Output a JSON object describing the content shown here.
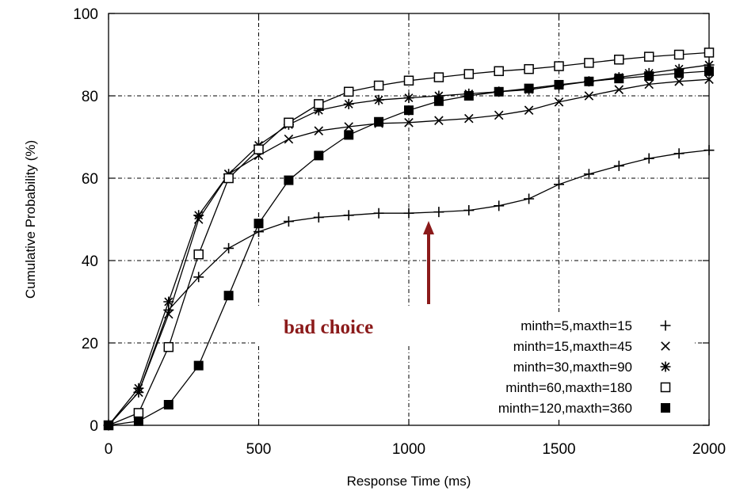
{
  "chart_data": {
    "type": "line",
    "title": "",
    "xlabel": "Response Time (ms)",
    "ylabel": "Cumulative Probability (%)",
    "xlim": [
      0,
      2000
    ],
    "ylim": [
      0,
      100
    ],
    "x_ticks": [
      "0",
      "500",
      "1000",
      "1500",
      "2000"
    ],
    "y_ticks": [
      "0",
      "20",
      "40",
      "60",
      "80",
      "100"
    ],
    "grid": true,
    "legend_position": "bottom-right",
    "series": [
      {
        "name": "minth=5,maxth=15",
        "marker": "plus",
        "points": [
          [
            0,
            0
          ],
          [
            100,
            8
          ],
          [
            200,
            28
          ],
          [
            300,
            36
          ],
          [
            400,
            43
          ],
          [
            500,
            47
          ],
          [
            600,
            49.5
          ],
          [
            700,
            50.5
          ],
          [
            800,
            51
          ],
          [
            900,
            51.5
          ],
          [
            1000,
            51.5
          ],
          [
            1100,
            51.8
          ],
          [
            1200,
            52.2
          ],
          [
            1300,
            53.3
          ],
          [
            1400,
            55
          ],
          [
            1500,
            58.5
          ],
          [
            1600,
            61
          ],
          [
            1700,
            63
          ],
          [
            1800,
            64.8
          ],
          [
            1900,
            66
          ],
          [
            2000,
            66.8
          ]
        ]
      },
      {
        "name": "minth=15,maxth=45",
        "marker": "cross",
        "points": [
          [
            0,
            0
          ],
          [
            100,
            8
          ],
          [
            200,
            27
          ],
          [
            300,
            50
          ],
          [
            400,
            61
          ],
          [
            500,
            65.5
          ],
          [
            600,
            69.5
          ],
          [
            700,
            71.5
          ],
          [
            800,
            72.5
          ],
          [
            900,
            73.3
          ],
          [
            1000,
            73.5
          ],
          [
            1100,
            74
          ],
          [
            1200,
            74.5
          ],
          [
            1300,
            75.3
          ],
          [
            1400,
            76.5
          ],
          [
            1500,
            78.5
          ],
          [
            1600,
            80
          ],
          [
            1700,
            81.5
          ],
          [
            1800,
            82.8
          ],
          [
            1900,
            83.5
          ],
          [
            2000,
            84
          ]
        ]
      },
      {
        "name": "minth=30,maxth=90",
        "marker": "star",
        "points": [
          [
            0,
            0
          ],
          [
            100,
            9
          ],
          [
            200,
            30
          ],
          [
            300,
            51
          ],
          [
            400,
            61
          ],
          [
            500,
            68
          ],
          [
            600,
            73
          ],
          [
            700,
            76.5
          ],
          [
            800,
            78
          ],
          [
            900,
            79
          ],
          [
            1000,
            79.5
          ],
          [
            1100,
            80
          ],
          [
            1200,
            80.5
          ],
          [
            1300,
            81
          ],
          [
            1400,
            81.5
          ],
          [
            1500,
            82.5
          ],
          [
            1600,
            83.5
          ],
          [
            1700,
            84.5
          ],
          [
            1800,
            85.5
          ],
          [
            1900,
            86.5
          ],
          [
            2000,
            87.5
          ]
        ]
      },
      {
        "name": "minth=60,maxth=180",
        "marker": "square-open",
        "points": [
          [
            0,
            0
          ],
          [
            100,
            3
          ],
          [
            200,
            19
          ],
          [
            300,
            41.5
          ],
          [
            400,
            60
          ],
          [
            500,
            67
          ],
          [
            600,
            73.5
          ],
          [
            700,
            78
          ],
          [
            800,
            81
          ],
          [
            900,
            82.5
          ],
          [
            1000,
            83.7
          ],
          [
            1100,
            84.5
          ],
          [
            1200,
            85.3
          ],
          [
            1300,
            86
          ],
          [
            1400,
            86.5
          ],
          [
            1500,
            87.2
          ],
          [
            1600,
            88
          ],
          [
            1700,
            88.8
          ],
          [
            1800,
            89.5
          ],
          [
            1900,
            90
          ],
          [
            2000,
            90.5
          ]
        ]
      },
      {
        "name": "minth=120,maxth=360",
        "marker": "square-filled",
        "points": [
          [
            0,
            0
          ],
          [
            100,
            1
          ],
          [
            200,
            5
          ],
          [
            300,
            14.5
          ],
          [
            400,
            31.5
          ],
          [
            500,
            49
          ],
          [
            600,
            59.5
          ],
          [
            700,
            65.5
          ],
          [
            800,
            70.5
          ],
          [
            900,
            73.7
          ],
          [
            1000,
            76.5
          ],
          [
            1100,
            78.7
          ],
          [
            1200,
            80
          ],
          [
            1300,
            81
          ],
          [
            1400,
            81.8
          ],
          [
            1500,
            82.7
          ],
          [
            1600,
            83.5
          ],
          [
            1700,
            84.2
          ],
          [
            1800,
            84.8
          ],
          [
            1900,
            85.5
          ],
          [
            2000,
            86
          ]
        ]
      }
    ],
    "annotation": {
      "text": "bad choice",
      "color": "#8b1a1a",
      "arrow_points_to": [
        1070,
        51.5
      ]
    }
  }
}
